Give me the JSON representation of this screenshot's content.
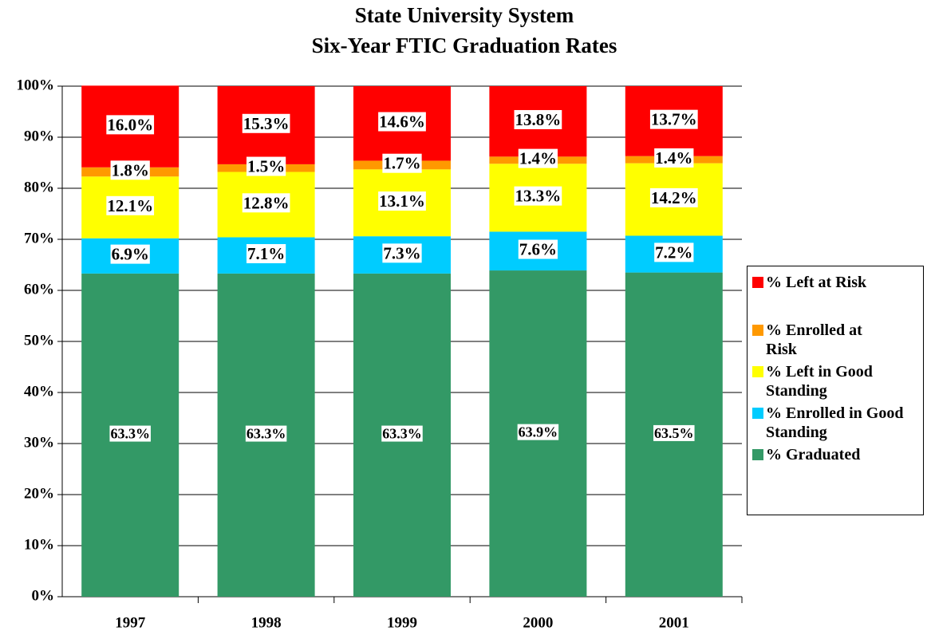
{
  "chart_data": {
    "type": "stacked_bar",
    "title": [
      "State University System",
      "Six-Year FTIC Graduation Rates"
    ],
    "categories": [
      "1997",
      "1998",
      "1999",
      "2000",
      "2001"
    ],
    "series": [
      {
        "name": "% Graduated",
        "color": "#339966",
        "values": [
          63.3,
          63.3,
          63.3,
          63.9,
          63.5
        ],
        "value_labels": [
          "63.3%",
          "63.3%",
          "63.3%",
          "63.9%",
          "63.5%"
        ]
      },
      {
        "name": "% Enrolled in Good Standing",
        "color": "#00ccff",
        "values": [
          6.9,
          7.1,
          7.3,
          7.6,
          7.2
        ],
        "value_labels": [
          "6.9%",
          "7.1%",
          "7.3%",
          "7.6%",
          "7.2%"
        ]
      },
      {
        "name": "% Left in Good Standing",
        "color": "#ffff00",
        "values": [
          12.1,
          12.8,
          13.1,
          13.3,
          14.2
        ],
        "value_labels": [
          "12.1%",
          "12.8%",
          "13.1%",
          "13.3%",
          "14.2%"
        ]
      },
      {
        "name": "% Enrolled at Risk",
        "color": "#ff9900",
        "values": [
          1.8,
          1.5,
          1.7,
          1.4,
          1.4
        ],
        "value_labels": [
          "1.8%",
          "1.5%",
          "1.7%",
          "1.4%",
          "1.4%"
        ]
      },
      {
        "name": "% Left at Risk",
        "color": "#ff0000",
        "values": [
          16.0,
          15.3,
          14.6,
          13.8,
          13.7
        ],
        "value_labels": [
          "16.0%",
          "15.3%",
          "14.6%",
          "13.8%",
          "13.7%"
        ]
      }
    ],
    "ylim": [
      0,
      100
    ],
    "yticks": [
      {
        "value": 0,
        "label": "0%"
      },
      {
        "value": 10,
        "label": "10%"
      },
      {
        "value": 20,
        "label": "20%"
      },
      {
        "value": 30,
        "label": "30%"
      },
      {
        "value": 40,
        "label": "40%"
      },
      {
        "value": 50,
        "label": "50%"
      },
      {
        "value": 60,
        "label": "60%"
      },
      {
        "value": 70,
        "label": "70%"
      },
      {
        "value": 80,
        "label": "80%"
      },
      {
        "value": 90,
        "label": "90%"
      },
      {
        "value": 100,
        "label": "100%"
      }
    ],
    "grid": true,
    "legend": "right"
  }
}
